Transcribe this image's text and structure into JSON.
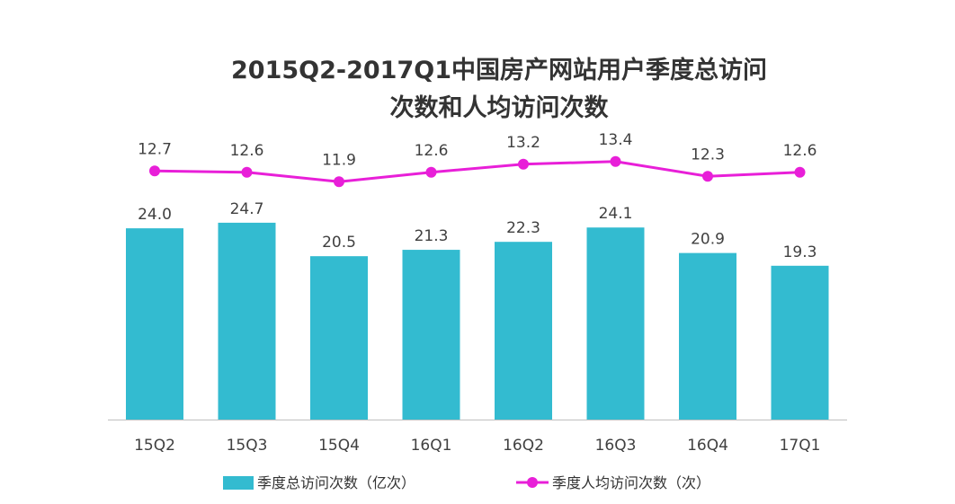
{
  "chart_data": {
    "type": "bar",
    "title_lines": [
      "2015Q2-2017Q1中国房产网站用户季度总访问",
      "次数和人均访问次数"
    ],
    "categories": [
      "15Q2",
      "15Q3",
      "15Q4",
      "16Q1",
      "16Q2",
      "16Q3",
      "16Q4",
      "17Q1"
    ],
    "series": [
      {
        "name": "季度总访问次数（亿次）",
        "kind": "bar",
        "color": "#33BBD0",
        "values": [
          24.0,
          24.7,
          20.5,
          21.3,
          22.3,
          24.1,
          20.9,
          19.3
        ],
        "labels": [
          "24.0",
          "24.7",
          "20.5",
          "21.3",
          "22.3",
          "24.1",
          "20.9",
          "19.3"
        ]
      },
      {
        "name": "季度人均访问次数（次）",
        "kind": "line",
        "color": "#E81FD8",
        "values": [
          12.7,
          12.6,
          11.9,
          12.6,
          13.2,
          13.4,
          12.3,
          12.6
        ],
        "labels": [
          "12.7",
          "12.6",
          "11.9",
          "12.6",
          "13.2",
          "13.4",
          "12.3",
          "12.6"
        ]
      }
    ],
    "legend_position": "bottom",
    "grid": false
  }
}
